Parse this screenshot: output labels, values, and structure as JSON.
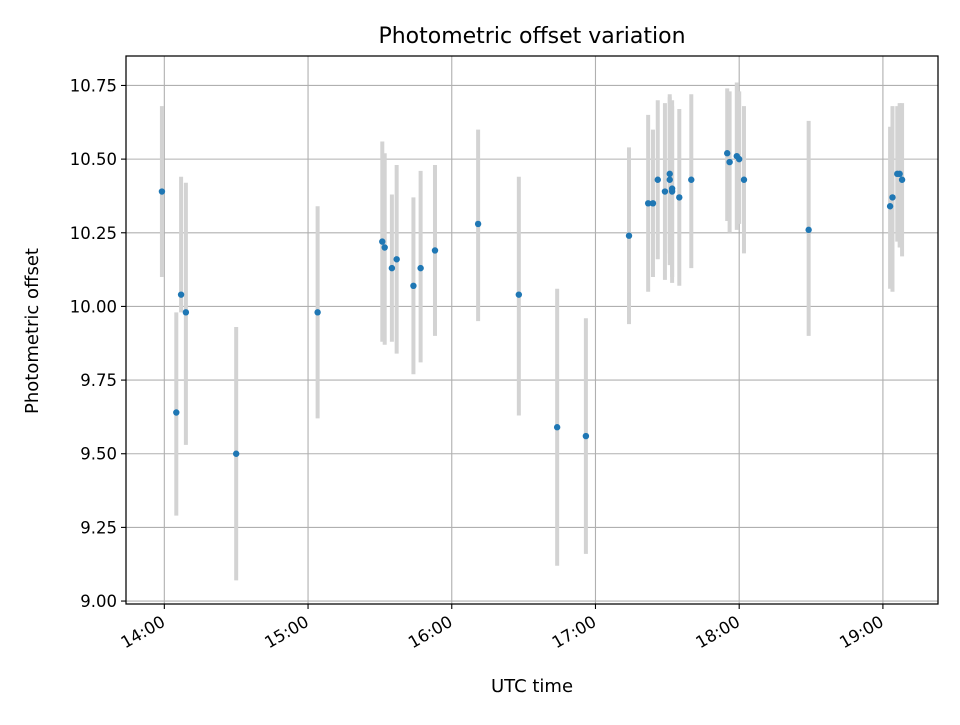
{
  "chart_data": {
    "type": "scatter",
    "title": "Photometric offset variation",
    "xlabel": "UTC time",
    "ylabel": "Photometric offset",
    "x_axis_kind": "time",
    "xlim": [
      "13:44",
      "19:23"
    ],
    "ylim": [
      8.99,
      10.85
    ],
    "grid": true,
    "x_ticks": [
      "14:00",
      "15:00",
      "16:00",
      "17:00",
      "18:00",
      "19:00"
    ],
    "y_ticks": [
      "9.00",
      "9.25",
      "9.50",
      "9.75",
      "10.00",
      "10.25",
      "10.50",
      "10.75"
    ],
    "colors": {
      "marker": "#1f77b4",
      "errorbar": "#d3d3d3",
      "grid": "#b0b0b0"
    },
    "points": [
      {
        "t": "13:59",
        "y": 10.39,
        "lo": 10.1,
        "hi": 10.68
      },
      {
        "t": "14:05",
        "y": 9.64,
        "lo": 9.29,
        "hi": 9.98
      },
      {
        "t": "14:07",
        "y": 10.04,
        "lo": 9.98,
        "hi": 10.44
      },
      {
        "t": "14:09",
        "y": 9.98,
        "lo": 9.53,
        "hi": 10.42
      },
      {
        "t": "14:30",
        "y": 9.5,
        "lo": 9.07,
        "hi": 9.93
      },
      {
        "t": "15:04",
        "y": 9.98,
        "lo": 9.62,
        "hi": 10.34
      },
      {
        "t": "15:31",
        "y": 10.22,
        "lo": 9.88,
        "hi": 10.56
      },
      {
        "t": "15:32",
        "y": 10.2,
        "lo": 9.87,
        "hi": 10.52
      },
      {
        "t": "15:35",
        "y": 10.13,
        "lo": 9.88,
        "hi": 10.38
      },
      {
        "t": "15:37",
        "y": 10.16,
        "lo": 9.84,
        "hi": 10.48
      },
      {
        "t": "15:44",
        "y": 10.07,
        "lo": 9.77,
        "hi": 10.37
      },
      {
        "t": "15:47",
        "y": 10.13,
        "lo": 9.81,
        "hi": 10.46
      },
      {
        "t": "15:53",
        "y": 10.19,
        "lo": 9.9,
        "hi": 10.48
      },
      {
        "t": "16:11",
        "y": 10.28,
        "lo": 9.95,
        "hi": 10.6
      },
      {
        "t": "16:28",
        "y": 10.04,
        "lo": 9.63,
        "hi": 10.44
      },
      {
        "t": "16:44",
        "y": 9.59,
        "lo": 9.12,
        "hi": 10.06
      },
      {
        "t": "16:56",
        "y": 9.56,
        "lo": 9.16,
        "hi": 9.96
      },
      {
        "t": "17:14",
        "y": 10.24,
        "lo": 9.94,
        "hi": 10.54
      },
      {
        "t": "17:22",
        "y": 10.35,
        "lo": 10.05,
        "hi": 10.65
      },
      {
        "t": "17:24",
        "y": 10.35,
        "lo": 10.1,
        "hi": 10.6
      },
      {
        "t": "17:26",
        "y": 10.43,
        "lo": 10.16,
        "hi": 10.7
      },
      {
        "t": "17:29",
        "y": 10.39,
        "lo": 10.09,
        "hi": 10.69
      },
      {
        "t": "17:31",
        "y": 10.45,
        "lo": 10.18,
        "hi": 10.72
      },
      {
        "t": "17:31",
        "y": 10.43,
        "lo": 10.14,
        "hi": 10.71
      },
      {
        "t": "17:32",
        "y": 10.4,
        "lo": 10.1,
        "hi": 10.7
      },
      {
        "t": "17:32",
        "y": 10.39,
        "lo": 10.08,
        "hi": 10.68
      },
      {
        "t": "17:35",
        "y": 10.37,
        "lo": 10.07,
        "hi": 10.67
      },
      {
        "t": "17:40",
        "y": 10.43,
        "lo": 10.13,
        "hi": 10.72
      },
      {
        "t": "17:55",
        "y": 10.52,
        "lo": 10.29,
        "hi": 10.74
      },
      {
        "t": "17:56",
        "y": 10.49,
        "lo": 10.25,
        "hi": 10.73
      },
      {
        "t": "17:59",
        "y": 10.51,
        "lo": 10.26,
        "hi": 10.76
      },
      {
        "t": "18:00",
        "y": 10.5,
        "lo": 10.28,
        "hi": 10.73
      },
      {
        "t": "18:02",
        "y": 10.43,
        "lo": 10.18,
        "hi": 10.68
      },
      {
        "t": "18:29",
        "y": 10.26,
        "lo": 9.9,
        "hi": 10.63
      },
      {
        "t": "19:03",
        "y": 10.34,
        "lo": 10.06,
        "hi": 10.61
      },
      {
        "t": "19:04",
        "y": 10.37,
        "lo": 10.05,
        "hi": 10.68
      },
      {
        "t": "19:06",
        "y": 10.45,
        "lo": 10.22,
        "hi": 10.68
      },
      {
        "t": "19:07",
        "y": 10.45,
        "lo": 10.2,
        "hi": 10.69
      },
      {
        "t": "19:08",
        "y": 10.43,
        "lo": 10.17,
        "hi": 10.69
      }
    ]
  }
}
